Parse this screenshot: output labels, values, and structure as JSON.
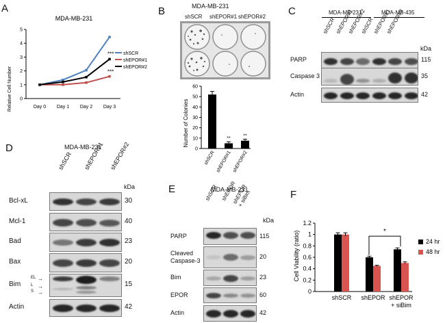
{
  "panels": {
    "A": {
      "letter": "A",
      "title": "MDA-MB-231",
      "ylabel": "Relative Cell Number",
      "legend": [
        "shSCR",
        "shEPOR#1",
        "shEPOR#2"
      ],
      "sig": [
        "***",
        "***"
      ]
    },
    "B": {
      "letter": "B",
      "title": "MDA-MB-231",
      "plate_labels": [
        "shSCR",
        "shEPOR#1",
        "shEPOR#2"
      ],
      "sig": [
        "**",
        "**"
      ]
    },
    "C": {
      "letter": "C",
      "groups": [
        "MDA-MB-231",
        "MDA-MB-435"
      ],
      "lanes": [
        "shSCR",
        "shEPOR#1",
        "shEPOR#2",
        "shSCR",
        "shEPOR#1",
        "shEPOR#2"
      ],
      "kda": "kDa",
      "blots": [
        {
          "label": "PARP",
          "mw": "115"
        },
        {
          "label": "Caspase 3",
          "mw": "35"
        },
        {
          "label": "Actin",
          "mw": "42"
        }
      ]
    },
    "D": {
      "letter": "D",
      "title": "MDA-MB-231",
      "lanes": [
        "shSCR",
        "shEPOR#1",
        "shEPOR#2"
      ],
      "kda": "kDa",
      "blots": [
        {
          "label": "Bcl-xL",
          "mw": "30"
        },
        {
          "label": "Mcl-1",
          "mw": "40"
        },
        {
          "label": "Bad",
          "mw": "23"
        },
        {
          "label": "Bax",
          "mw": "20"
        },
        {
          "label": "Bim",
          "mw": "15"
        },
        {
          "label": "Actin",
          "mw": "42"
        }
      ],
      "bim_isoforms": [
        "EL",
        "L",
        "S"
      ]
    },
    "E": {
      "letter": "E",
      "title": "MDA-MB-231",
      "lanes": [
        "shSCR",
        "shEPOR",
        "shEPOR\n+ siBim"
      ],
      "kda": "kDa",
      "blots": [
        {
          "label": "PARP",
          "mw": "115"
        },
        {
          "label": "Cleaved\nCaspase-3",
          "mw": "20"
        },
        {
          "label": "Bim",
          "mw": "23"
        },
        {
          "label": "EPOR",
          "mw": "60"
        },
        {
          "label": "Actin",
          "mw": "42"
        }
      ]
    },
    "F": {
      "letter": "F",
      "sig": "*"
    }
  },
  "chart_data": [
    {
      "id": "A",
      "type": "line",
      "title": "MDA-MB-231",
      "xlabel": "",
      "ylabel": "Relative Cell Number",
      "categories": [
        "Day 0",
        "Day 1",
        "Day 2",
        "Day 3"
      ],
      "ylim": [
        0,
        5
      ],
      "yticks": [
        0,
        1,
        2,
        3,
        4,
        5
      ],
      "grid": false,
      "legend": "right",
      "series": [
        {
          "name": "shSCR",
          "color": "#4f81bd",
          "values": [
            1.0,
            1.35,
            2.05,
            4.45
          ]
        },
        {
          "name": "shEPOR#1",
          "color": "#c0504d",
          "values": [
            1.0,
            1.0,
            1.15,
            1.6
          ]
        },
        {
          "name": "shEPOR#2",
          "color": "#000000",
          "values": [
            1.0,
            1.2,
            1.55,
            2.85
          ]
        }
      ]
    },
    {
      "id": "B",
      "type": "bar",
      "title": "",
      "xlabel": "",
      "ylabel": "Number of Colonies",
      "categories": [
        "shSCR",
        "shEPOR#1",
        "shEPOR#2"
      ],
      "values": [
        52,
        5,
        7.5
      ],
      "errors": [
        3,
        1.5,
        1.5
      ],
      "ylim": [
        0,
        60
      ],
      "yticks": [
        0,
        10,
        20,
        30,
        40,
        50,
        60
      ],
      "grid": false,
      "color": "#000000"
    },
    {
      "id": "F",
      "type": "bar",
      "title": "",
      "xlabel": "",
      "ylabel": "Cell Viability (ratio)",
      "categories": [
        "shSCR",
        "shEPOR",
        "shEPOR\n+ siBim"
      ],
      "ylim": [
        0,
        1.2
      ],
      "yticks": [
        0,
        0.2,
        0.4,
        0.6,
        0.8,
        1,
        1.2
      ],
      "grid": false,
      "legend": "right",
      "series": [
        {
          "name": "24 hr",
          "color": "#000000",
          "values": [
            1.0,
            0.6,
            0.74
          ],
          "errors": [
            0.03,
            0.02,
            0.025
          ]
        },
        {
          "name": "48 hr",
          "color": "#d9534f",
          "values": [
            1.0,
            0.45,
            0.5
          ],
          "errors": [
            0.03,
            0.01,
            0.02
          ]
        }
      ]
    }
  ]
}
